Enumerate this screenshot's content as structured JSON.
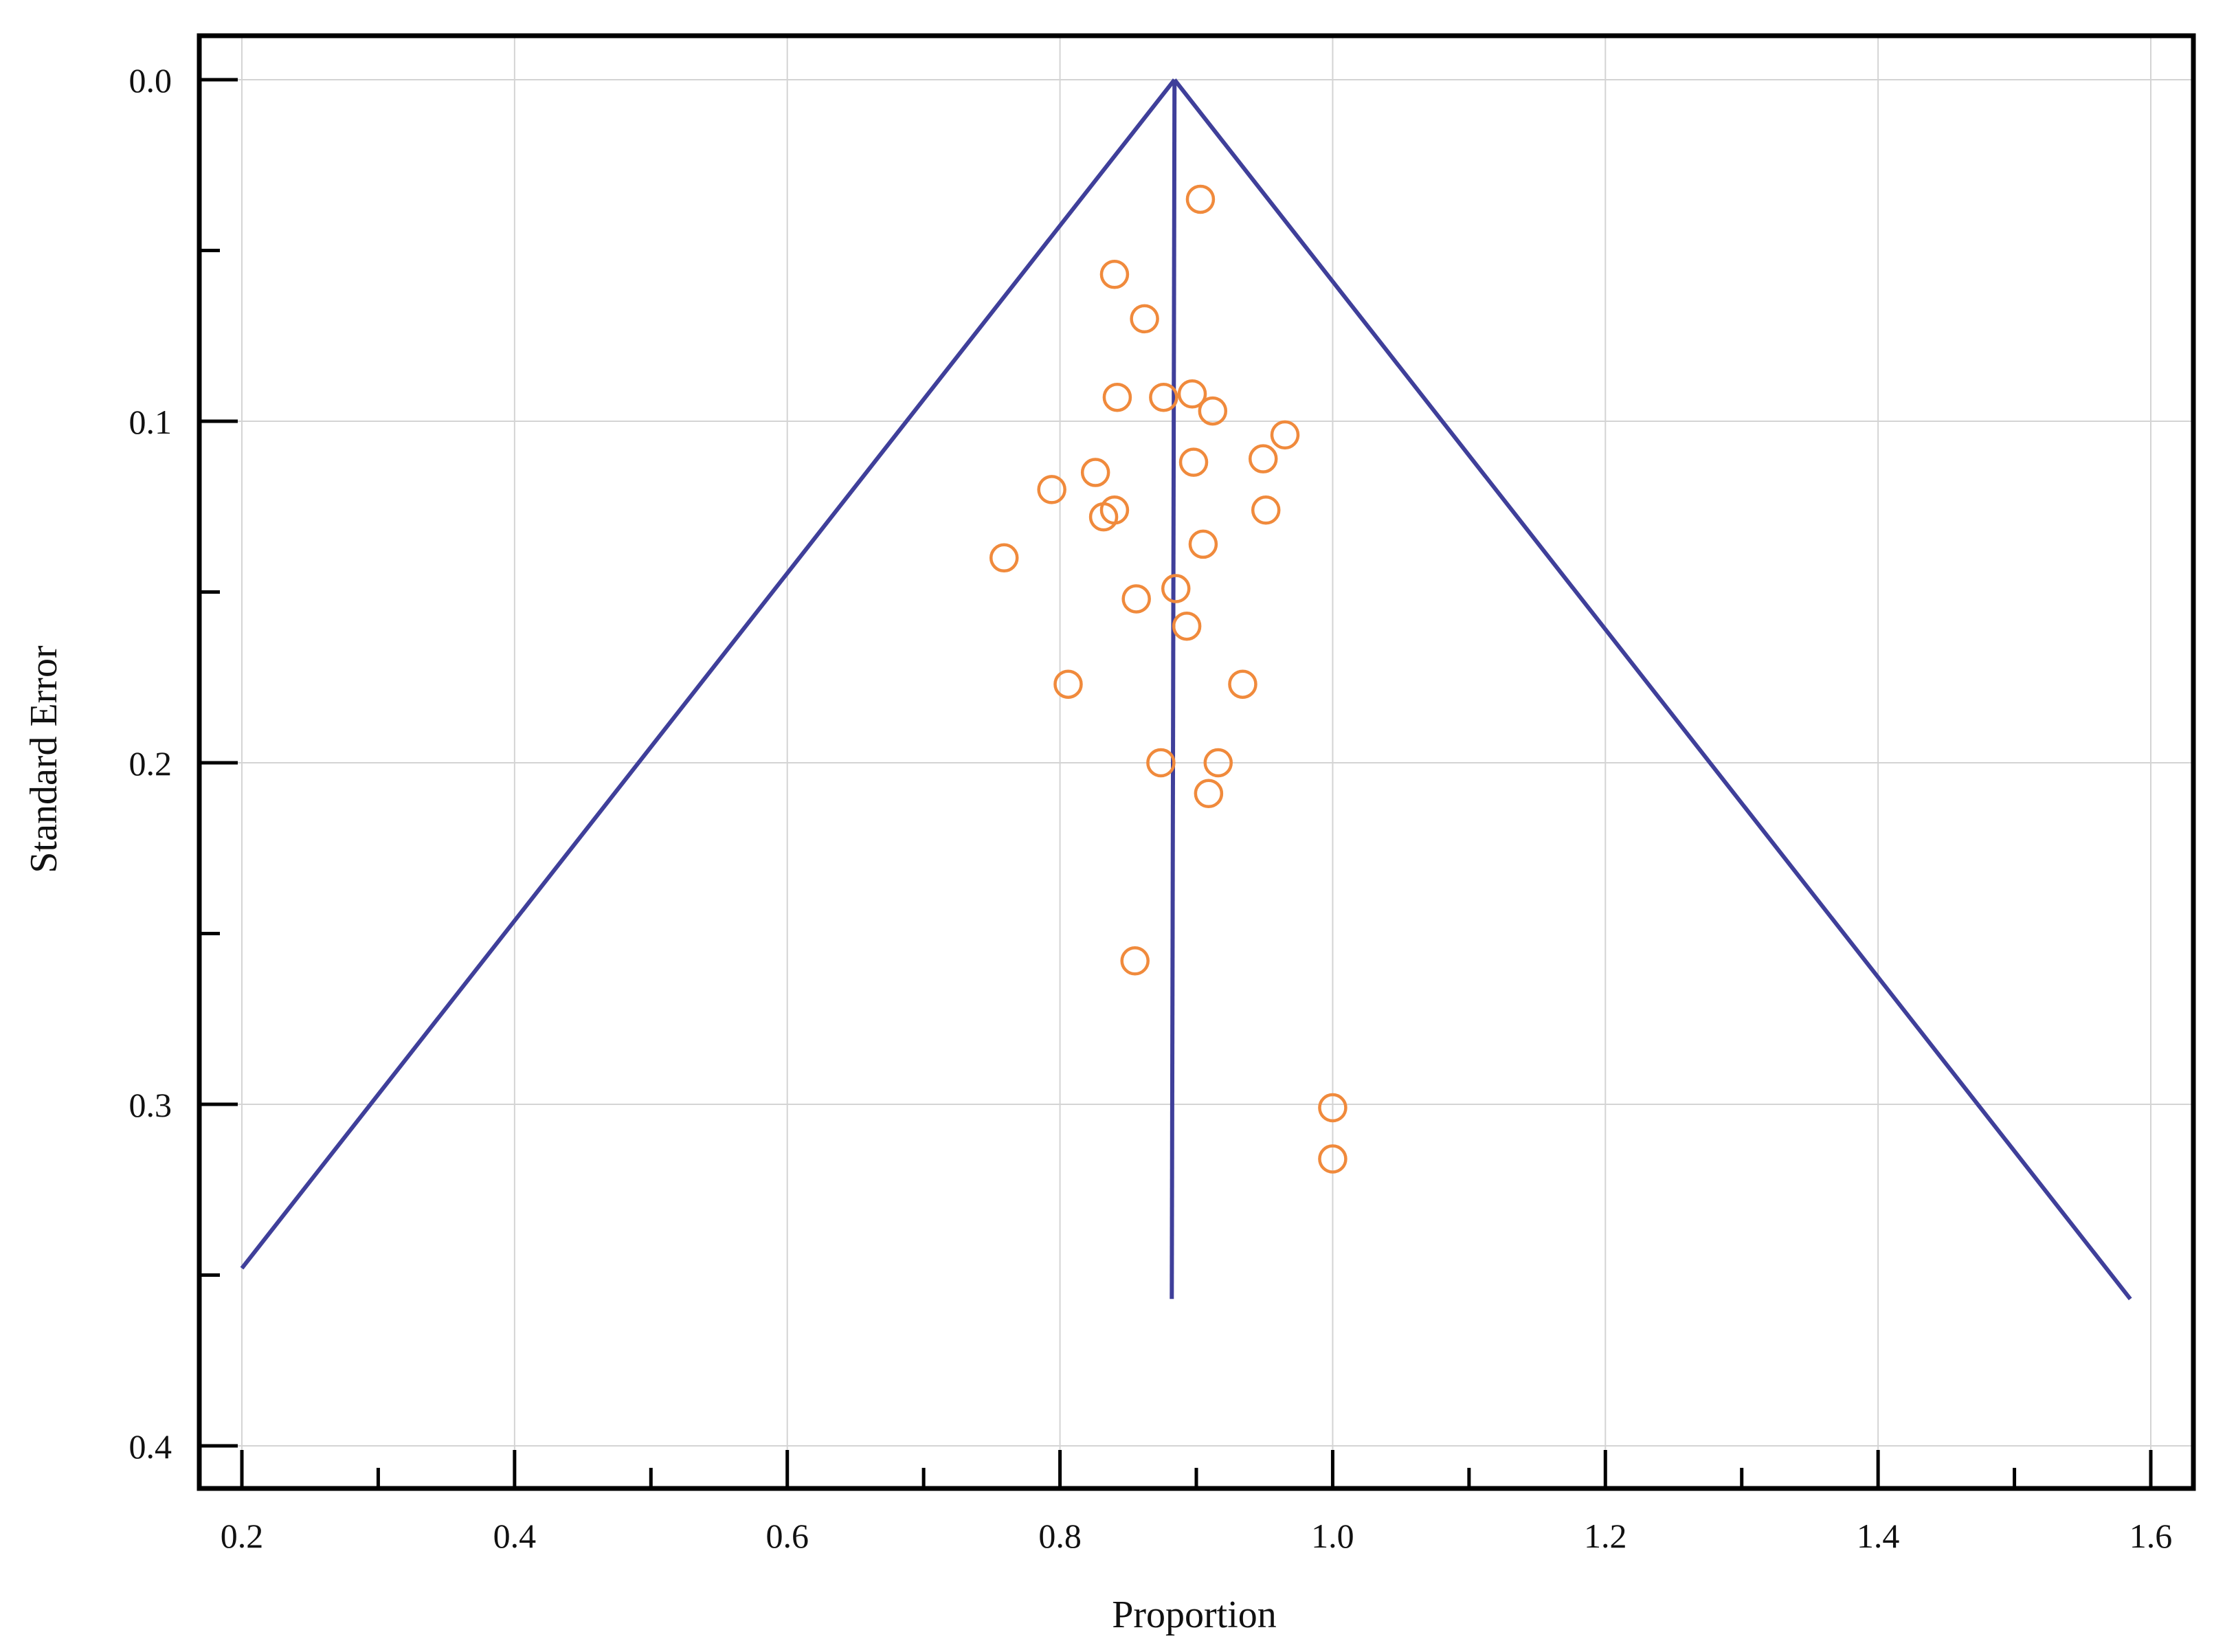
{
  "chart_data": {
    "type": "scatter",
    "title": "",
    "xlabel": "Proportion",
    "ylabel": "Standard Error",
    "xlim": [
      0.185,
      1.65
    ],
    "ylim": [
      0.0,
      0.41
    ],
    "y_inverted": true,
    "grid": true,
    "x_ticks": [
      0.2,
      0.4,
      0.6,
      0.8,
      1.0,
      1.2,
      1.4,
      1.6
    ],
    "x_tick_labels": [
      "0.2",
      "0.4",
      "0.6",
      "0.8",
      "1.0",
      "1.2",
      "1.4",
      "1.6"
    ],
    "y_ticks": [
      0.0,
      0.1,
      0.2,
      0.3,
      0.4
    ],
    "y_tick_labels": [
      "0.0",
      "0.1",
      "0.2",
      "0.3",
      "0.4"
    ],
    "pooled_estimate": 0.884,
    "funnel_lines": [
      {
        "x": [
          0.2,
          0.884
        ],
        "y": [
          0.348,
          0.0
        ]
      },
      {
        "x": [
          0.884,
          1.585
        ],
        "y": [
          0.0,
          0.357
        ]
      },
      {
        "x": [
          0.884,
          0.882
        ],
        "y": [
          0.0,
          0.357
        ]
      }
    ],
    "points": [
      {
        "x": 0.903,
        "y": 0.035
      },
      {
        "x": 0.84,
        "y": 0.057
      },
      {
        "x": 0.862,
        "y": 0.07
      },
      {
        "x": 0.842,
        "y": 0.093
      },
      {
        "x": 0.876,
        "y": 0.093
      },
      {
        "x": 0.897,
        "y": 0.092
      },
      {
        "x": 0.912,
        "y": 0.097
      },
      {
        "x": 0.965,
        "y": 0.104
      },
      {
        "x": 0.949,
        "y": 0.111
      },
      {
        "x": 0.898,
        "y": 0.112
      },
      {
        "x": 0.826,
        "y": 0.115
      },
      {
        "x": 0.794,
        "y": 0.12
      },
      {
        "x": 0.84,
        "y": 0.126
      },
      {
        "x": 0.832,
        "y": 0.128
      },
      {
        "x": 0.951,
        "y": 0.126
      },
      {
        "x": 0.905,
        "y": 0.136
      },
      {
        "x": 0.759,
        "y": 0.14
      },
      {
        "x": 0.885,
        "y": 0.149
      },
      {
        "x": 0.856,
        "y": 0.152
      },
      {
        "x": 0.893,
        "y": 0.16
      },
      {
        "x": 0.806,
        "y": 0.177
      },
      {
        "x": 0.934,
        "y": 0.177
      },
      {
        "x": 0.874,
        "y": 0.2
      },
      {
        "x": 0.916,
        "y": 0.2
      },
      {
        "x": 0.909,
        "y": 0.209
      },
      {
        "x": 0.855,
        "y": 0.258
      },
      {
        "x": 1.0,
        "y": 0.301
      },
      {
        "x": 1.0,
        "y": 0.316
      }
    ],
    "colors": {
      "funnel": "#3f3f9a",
      "points": "#f08a3c",
      "grid": "#d4d4d4",
      "frame": "#000000"
    }
  }
}
